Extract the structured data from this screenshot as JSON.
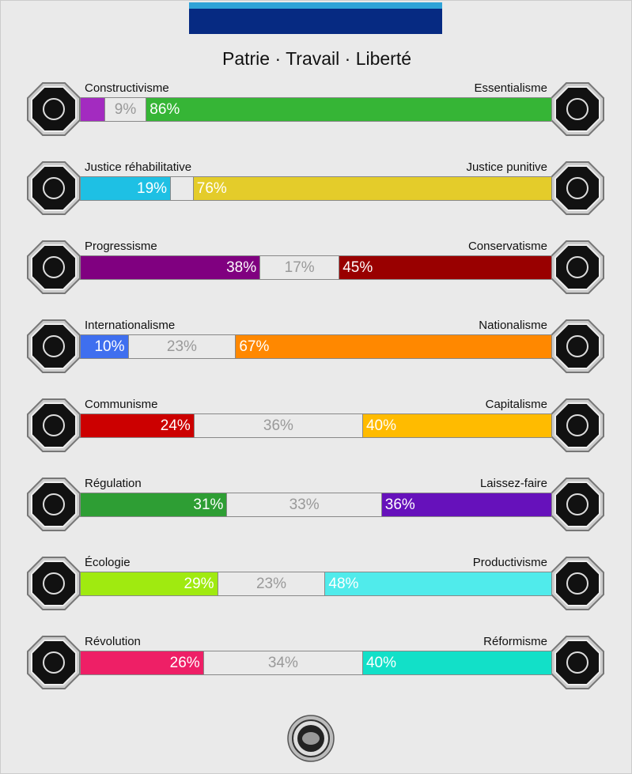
{
  "motto": "Patrie · Travail · Liberté",
  "axes": [
    {
      "left": "Constructivisme",
      "right": "Essentialisme",
      "left_pct": 5,
      "neutral_pct": 9,
      "right_pct": 86,
      "left_text": "",
      "neutral_text": "9%",
      "right_text": "86%",
      "left_color": "#a32bc0",
      "right_color": "#36b536",
      "left_icon": "eye-icon",
      "right_icon": "dna-flower-icon"
    },
    {
      "left": "Justice réhabilitative",
      "right": "Justice punitive",
      "left_pct": 19,
      "neutral_pct": 5,
      "right_pct": 76,
      "left_text": "19%",
      "neutral_text": "",
      "right_text": "76%",
      "left_color": "#1ec0e4",
      "right_color": "#e4cc2a",
      "left_icon": "handshake-icon",
      "right_icon": "prison-bars-icon"
    },
    {
      "left": "Progressisme",
      "right": "Conservatisme",
      "left_pct": 38,
      "neutral_pct": 17,
      "right_pct": 45,
      "left_text": "38%",
      "neutral_text": "17%",
      "right_text": "45%",
      "left_color": "#800080",
      "right_color": "#990000",
      "left_icon": "rocket-icon",
      "right_icon": "pen-icon"
    },
    {
      "left": "Internationalisme",
      "right": "Nationalisme",
      "left_pct": 10,
      "neutral_pct": 23,
      "right_pct": 67,
      "left_text": "10%",
      "neutral_text": "23%",
      "right_text": "67%",
      "left_color": "#3f6fef",
      "right_color": "#ff8800",
      "left_icon": "globe-icon",
      "right_icon": "flag-icon"
    },
    {
      "left": "Communisme",
      "right": "Capitalisme",
      "left_pct": 24,
      "neutral_pct": 36,
      "right_pct": 40,
      "left_text": "24%",
      "neutral_text": "36%",
      "right_text": "40%",
      "left_color": "#cc0000",
      "right_color": "#ffbb00",
      "left_icon": "hammer-sickle-icon",
      "right_icon": "money-bag-icon"
    },
    {
      "left": "Régulation",
      "right": "Laissez-faire",
      "left_pct": 31,
      "neutral_pct": 33,
      "right_pct": 36,
      "left_text": "31%",
      "neutral_text": "33%",
      "right_text": "36%",
      "left_color": "#2e9e34",
      "right_color": "#6611bb",
      "left_icon": "ruler-icon",
      "right_icon": "butterfly-icon"
    },
    {
      "left": "Écologie",
      "right": "Productivisme",
      "left_pct": 29,
      "neutral_pct": 23,
      "right_pct": 48,
      "left_text": "29%",
      "neutral_text": "23%",
      "right_text": "48%",
      "left_color": "#a0ea10",
      "right_color": "#50ebeb",
      "left_icon": "plant-icon",
      "right_icon": "factory-gear-icon"
    },
    {
      "left": "Révolution",
      "right": "Réformisme",
      "left_pct": 26,
      "neutral_pct": 34,
      "right_pct": 40,
      "left_text": "26%",
      "neutral_text": "34%",
      "right_text": "40%",
      "left_color": "#ee1f66",
      "right_color": "#12e0c8",
      "left_icon": "fist-icon",
      "right_icon": "scales-icon"
    }
  ]
}
